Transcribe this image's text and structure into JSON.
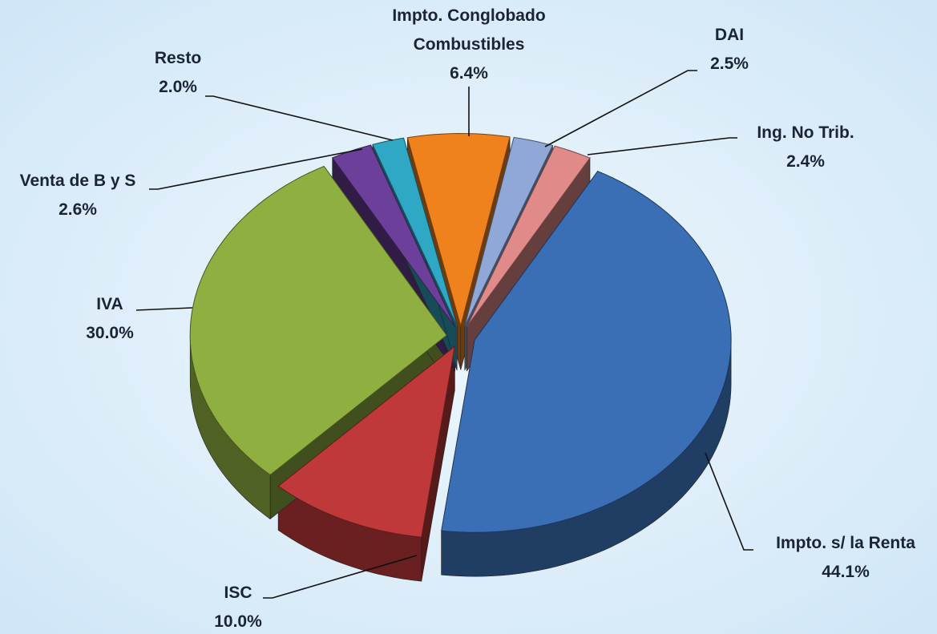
{
  "chart_data": {
    "type": "pie",
    "categories": [
      "Impto. Conglobado Combustibles",
      "DAI",
      "Ing. No Trib.",
      "Impto. s/ la Renta",
      "ISC",
      "IVA",
      "Venta de B y S",
      "Resto"
    ],
    "values": [
      6.4,
      2.5,
      2.4,
      44.1,
      10.0,
      30.0,
      2.6,
      2.0
    ],
    "value_labels": [
      "6.4%",
      "2.5%",
      "2.4%",
      "44.1%",
      "10.0%",
      "30.0%",
      "2.6%",
      "2.0%"
    ],
    "colors": [
      "#f0821e",
      "#8fa8d8",
      "#e08a8a",
      "#3a6eb5",
      "#c0393a",
      "#8fb040",
      "#6b3f9a",
      "#2ea8c4"
    ]
  }
}
